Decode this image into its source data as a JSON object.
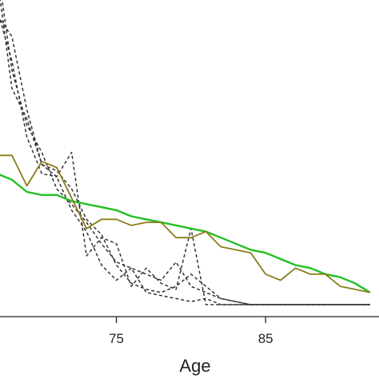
{
  "chart_data": {
    "type": "line",
    "title": "",
    "xlabel": "Age",
    "ylabel": "",
    "xlim": [
      67.2,
      92.6
    ],
    "ylim": [
      0,
      1
    ],
    "x_ticks": [
      75,
      85
    ],
    "x_tick_labels": [
      "75",
      "85"
    ],
    "grid": false,
    "legend": "none",
    "x": [
      67,
      68,
      69,
      70,
      71,
      72,
      73,
      74,
      75,
      76,
      77,
      78,
      79,
      80,
      81,
      82,
      83,
      84,
      85,
      86,
      87,
      88,
      89,
      90,
      91,
      92
    ],
    "series": [
      {
        "color": "#22c022",
        "style": "solid",
        "values": [
          0.43,
          0.41,
          0.37,
          0.36,
          0.36,
          0.34,
          0.33,
          0.32,
          0.31,
          0.29,
          0.28,
          0.27,
          0.26,
          0.25,
          0.24,
          0.22,
          0.2,
          0.18,
          0.17,
          0.15,
          0.13,
          0.12,
          0.1,
          0.09,
          0.07,
          0.04
        ]
      },
      {
        "color": "#8b7d1a",
        "style": "solid",
        "values": [
          0.49,
          0.49,
          0.39,
          0.47,
          0.45,
          0.35,
          0.25,
          0.28,
          0.28,
          0.26,
          0.27,
          0.27,
          0.22,
          0.22,
          0.24,
          0.19,
          0.18,
          0.17,
          0.1,
          0.08,
          0.12,
          0.1,
          0.1,
          0.06,
          0.05,
          0.04
        ]
      },
      {
        "color": "#333333",
        "style": "dashed",
        "values": [
          0.95,
          0.88,
          0.64,
          0.46,
          0.42,
          0.31,
          0.24,
          0.13,
          0.08,
          0.12,
          0.04,
          0.03,
          0.02,
          0.01,
          0.02,
          0.0,
          0.0,
          0.0,
          0.0,
          0.0,
          0.0,
          0.0,
          0.0,
          0.0,
          0.0,
          0.0
        ]
      },
      {
        "color": "#333333",
        "style": "dashed",
        "values": [
          1.08,
          0.71,
          0.61,
          0.46,
          0.44,
          0.38,
          0.28,
          0.23,
          0.13,
          0.07,
          0.05,
          0.04,
          0.06,
          0.1,
          0.06,
          0.02,
          0.01,
          0.0,
          0.0,
          0.0,
          0.0,
          0.0,
          0.0,
          0.0,
          0.0,
          0.0
        ]
      },
      {
        "color": "#333333",
        "style": "dashed",
        "values": [
          0.97,
          0.8,
          0.55,
          0.43,
          0.42,
          0.5,
          0.16,
          0.22,
          0.2,
          0.06,
          0.12,
          0.07,
          0.05,
          0.25,
          0.0,
          0.0,
          0.0,
          0.0,
          0.0,
          0.0,
          0.0,
          0.0,
          0.0,
          0.0,
          0.0,
          0.0
        ]
      },
      {
        "color": "#333333",
        "style": "dashed",
        "values": [
          1.12,
          0.77,
          0.59,
          0.5,
          0.38,
          0.33,
          0.27,
          0.2,
          0.14,
          0.12,
          0.1,
          0.08,
          0.14,
          0.06,
          0.04,
          0.02,
          0.01,
          0.0,
          0.0,
          0.0,
          0.0,
          0.0,
          0.0,
          0.0,
          0.0,
          0.0
        ]
      }
    ]
  }
}
